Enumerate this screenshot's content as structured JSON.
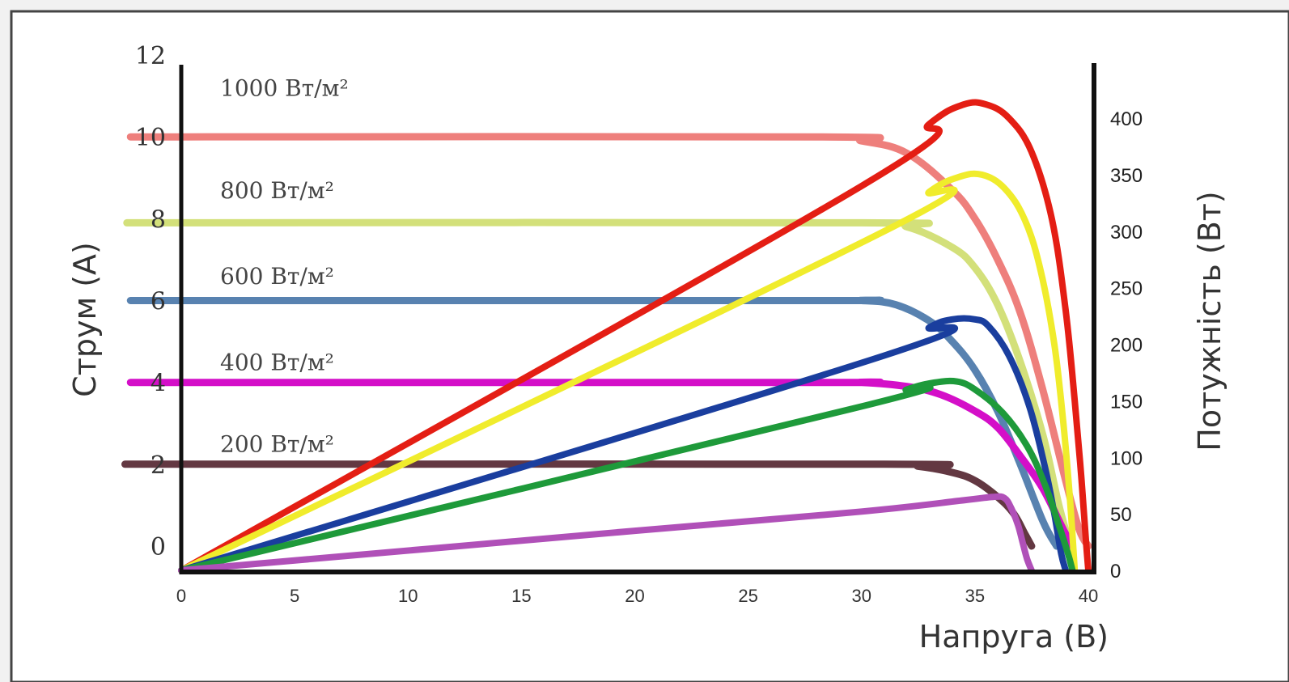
{
  "chart_data": {
    "type": "line",
    "xlabel": "Напруга (В)",
    "ylabel": "Струм (A)",
    "y2label": "Потужність (Вт)",
    "xlim": [
      0,
      40
    ],
    "ylim": [
      0,
      12
    ],
    "y2lim": [
      0,
      400
    ],
    "xticks": [
      "0",
      "5",
      "10",
      "15",
      "20",
      "25",
      "30",
      "35",
      "40"
    ],
    "yticks": [
      "0",
      "2",
      "4",
      "6",
      "8",
      "10",
      "12"
    ],
    "y2ticks": [
      "0",
      "50",
      "100",
      "150",
      "200",
      "250",
      "300",
      "350",
      "400"
    ],
    "grid": false,
    "irradiance_labels": [
      {
        "text": "1000 Вт/м²",
        "y": 11.2
      },
      {
        "text": "800 Вт/м²",
        "y": 8.7
      },
      {
        "text": "600 Вт/м²",
        "y": 6.6
      },
      {
        "text": "400 Вт/м²",
        "y": 4.5
      },
      {
        "text": "200 Вт/м²",
        "y": 2.5
      }
    ],
    "current_series": [
      {
        "color": "#ee7f7c",
        "x": [
          0,
          28,
          30,
          32,
          34,
          35,
          36,
          37,
          38,
          39,
          39.6,
          40
        ],
        "y": [
          10,
          10,
          9.9,
          9.6,
          8.7,
          8.0,
          7.0,
          5.7,
          3.8,
          1.6,
          0.4,
          0
        ]
      },
      {
        "color": "#d3e07a",
        "x": [
          0,
          30,
          32,
          34,
          35,
          36,
          37,
          38,
          38.7,
          39.2
        ],
        "y": [
          7.9,
          7.9,
          7.8,
          7.3,
          6.8,
          5.9,
          4.5,
          2.7,
          1.0,
          0
        ]
      },
      {
        "color": "#5882b0",
        "x": [
          0,
          28,
          30,
          31.5,
          33,
          34,
          35,
          36,
          37,
          38,
          38.6
        ],
        "y": [
          6,
          6,
          6,
          5.9,
          5.5,
          5.0,
          4.3,
          3.3,
          2.0,
          0.6,
          0
        ]
      },
      {
        "color": "#d40fc8",
        "x": [
          0,
          28,
          30,
          32,
          33.5,
          35,
          36,
          37,
          38,
          38.9,
          39.3
        ],
        "y": [
          4,
          4,
          4,
          3.9,
          3.7,
          3.3,
          2.9,
          2.2,
          1.4,
          0.4,
          0
        ]
      },
      {
        "color": "#633842",
        "x": [
          0,
          31,
          32.5,
          34,
          35,
          36,
          36.7,
          37.2,
          37.5
        ],
        "y": [
          2,
          2,
          1.95,
          1.8,
          1.6,
          1.2,
          0.8,
          0.3,
          0
        ]
      }
    ],
    "power_series": [
      {
        "color": "#e41e14",
        "x": [
          0,
          30,
          33,
          34.5,
          35.5,
          36.5,
          37.5,
          38.4,
          39.0,
          39.4,
          39.7,
          39.9,
          40.0
        ],
        "y": [
          0,
          340,
          395,
          412,
          412,
          400,
          370,
          310,
          230,
          150,
          80,
          25,
          0
        ]
      },
      {
        "color": "#f0ec2c",
        "x": [
          0,
          31,
          33,
          34.3,
          35.3,
          36.3,
          37.2,
          37.9,
          38.5,
          38.9,
          39.2,
          39.4
        ],
        "y": [
          0,
          300,
          335,
          348,
          350,
          338,
          310,
          265,
          200,
          130,
          60,
          0
        ]
      },
      {
        "color": "#1a3e9e",
        "x": [
          0,
          31,
          33,
          34,
          35,
          35.6,
          36.5,
          37.4,
          38.1,
          38.5,
          38.8,
          39.0
        ],
        "y": [
          0,
          190,
          215,
          222,
          222,
          216,
          190,
          145,
          90,
          50,
          15,
          0
        ]
      },
      {
        "color": "#1e9a3a",
        "x": [
          0,
          30,
          32,
          33.2,
          34.2,
          35,
          36.2,
          37.3,
          38.1,
          38.7,
          39.1,
          39.3
        ],
        "y": [
          0,
          145,
          160,
          166,
          167,
          160,
          140,
          110,
          75,
          40,
          15,
          0
        ]
      },
      {
        "color": "#b050b8",
        "x": [
          0,
          20,
          30,
          34.5,
          35.8,
          36.3,
          36.6,
          36.9,
          37.1,
          37.3,
          37.5
        ],
        "y": [
          0,
          35,
          52,
          62,
          65,
          64,
          55,
          40,
          25,
          10,
          0
        ]
      }
    ]
  }
}
